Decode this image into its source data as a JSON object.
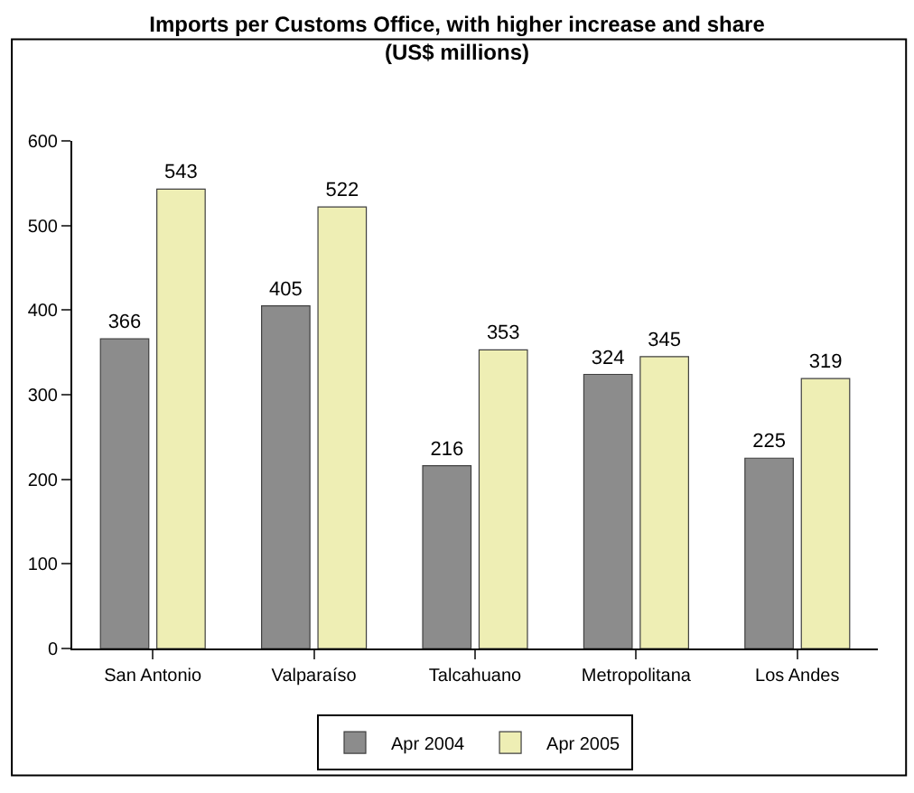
{
  "chart_data": {
    "type": "bar",
    "title": "Imports per Customs Office, with higher increase and share\n(US$ millions)",
    "categories": [
      "San Antonio",
      "Valparaíso",
      "Talcahuano",
      "Metropolitana",
      "Los Andes"
    ],
    "series": [
      {
        "name": "Apr 2004",
        "color": "#8c8c8c",
        "values": [
          366,
          405,
          216,
          324,
          225
        ]
      },
      {
        "name": "Apr 2005",
        "color": "#eeeeb4",
        "values": [
          543,
          522,
          353,
          345,
          319
        ]
      }
    ],
    "ylim": [
      0,
      600
    ],
    "yticks": [
      0,
      100,
      200,
      300,
      400,
      500,
      600
    ],
    "grid": false,
    "legend": "bottom",
    "data_labels": true
  }
}
